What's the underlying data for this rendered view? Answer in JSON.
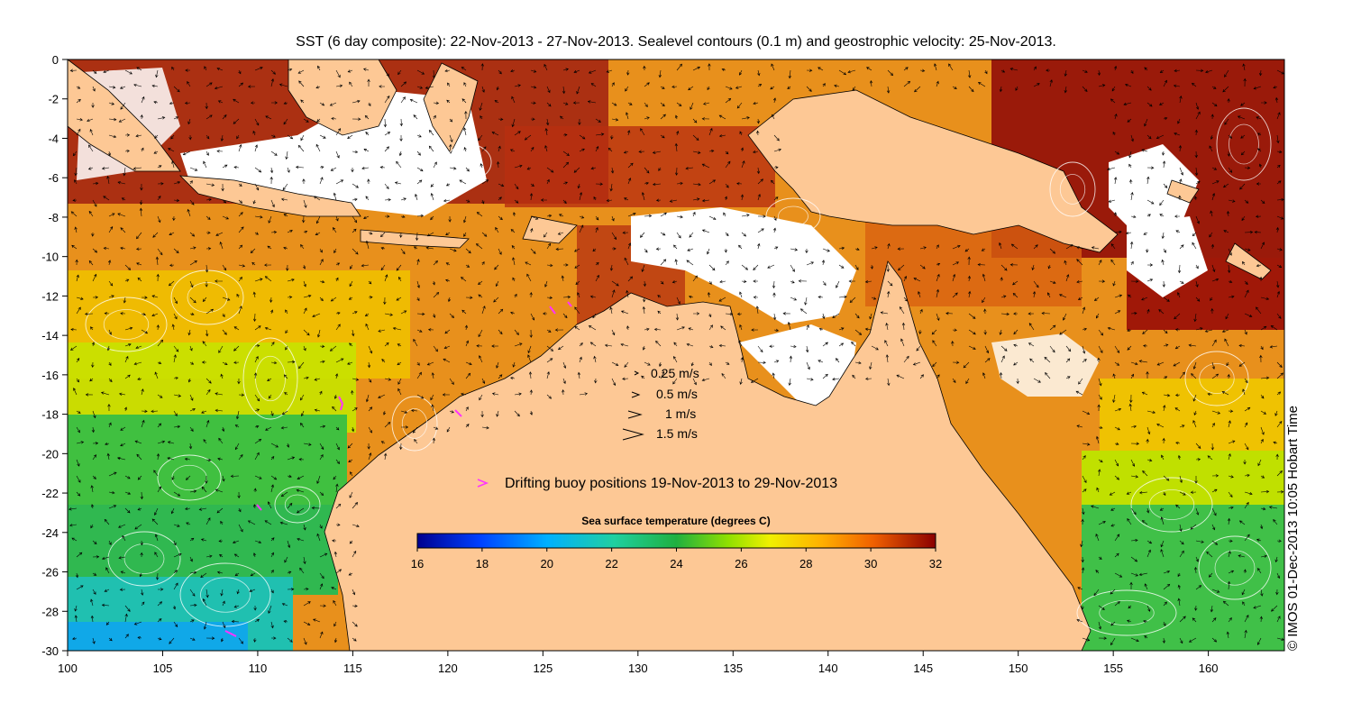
{
  "title": "SST (6 day composite): 22-Nov-2013 - 27-Nov-2013. Sealevel contours (0.1 m) and geostrophic velocity: 25-Nov-2013.",
  "credit": "© IMOS 01-Dec-2013 10:05 Hobart Time",
  "axes": {
    "x_ticks": [
      "100",
      "105",
      "110",
      "115",
      "120",
      "125",
      "130",
      "135",
      "140",
      "145",
      "150",
      "155",
      "160"
    ],
    "y_ticks": [
      "0",
      "-2",
      "-4",
      "-6",
      "-8",
      "-10",
      "-12",
      "-14",
      "-16",
      "-18",
      "-20",
      "-22",
      "-24",
      "-26",
      "-28",
      "-30"
    ],
    "lon_range": [
      100,
      164
    ],
    "lat_range": [
      -30,
      0
    ]
  },
  "velocity_legend": [
    {
      "label": "0.25 m/s"
    },
    {
      "label": "0.5 m/s"
    },
    {
      "label": "1 m/s"
    },
    {
      "label": "1.5 m/s"
    }
  ],
  "buoy_legend": {
    "label": "Drifting buoy positions 19-Nov-2013 to 29-Nov-2013",
    "color": "#ff33ff"
  },
  "colorbar": {
    "title": "Sea surface temperature (degrees C)",
    "ticks": [
      "16",
      "18",
      "20",
      "22",
      "24",
      "26",
      "28",
      "30",
      "32"
    ],
    "range": [
      16,
      32
    ]
  },
  "colors": {
    "land": "#fdc895",
    "sst_cold": "#00008f",
    "sst_warm": "#8b0000",
    "cloud": "#ffffff"
  }
}
